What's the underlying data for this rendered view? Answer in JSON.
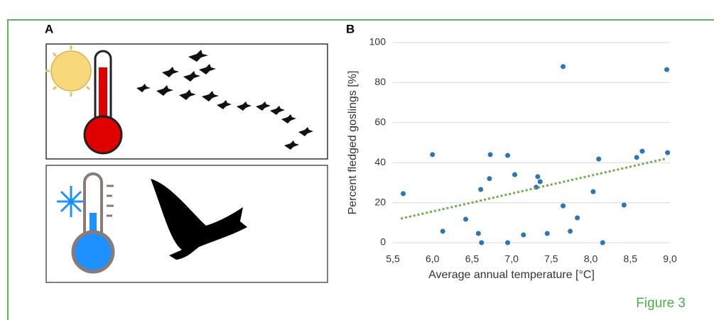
{
  "panel_labels": [
    "A",
    "B"
  ],
  "figure_label": "Figure 3",
  "chart_data": {
    "type": "scatter",
    "x_label": "Average annual temperature [°C]",
    "y_label": "Percent fledged goslings [%]",
    "color": "#2e75b6",
    "x": [
      5.63,
      6.0,
      6.13,
      6.42,
      6.58,
      6.61,
      6.62,
      6.72,
      6.73,
      6.95,
      6.95,
      7.04,
      7.15,
      7.31,
      7.33,
      7.36,
      7.45,
      7.65,
      7.65,
      7.74,
      7.83,
      8.03,
      8.1,
      8.15,
      8.42,
      8.58,
      8.65,
      8.96,
      8.97
    ],
    "values": [
      24.5,
      44,
      5.7,
      11.7,
      4.6,
      26.6,
      0,
      32,
      44,
      43.6,
      0,
      34,
      3.9,
      27.7,
      33,
      30.5,
      4.6,
      88,
      18.4,
      5.7,
      12.4,
      25.5,
      41.8,
      0,
      18.8,
      42.6,
      45.7,
      86.5,
      45
    ],
    "trendline": {
      "color": "#70ad47",
      "x": [
        5.6,
        8.95
      ],
      "values": [
        12,
        42
      ]
    },
    "xlim": [
      5.5,
      9.0
    ],
    "ylim": [
      0,
      100
    ],
    "xticks": [
      {
        "value": 5.5,
        "label": "5,5"
      },
      {
        "value": 6.0,
        "label": "6,0"
      },
      {
        "value": 6.5,
        "label": "6,5"
      },
      {
        "value": 7.0,
        "label": "7,0"
      },
      {
        "value": 7.5,
        "label": "7,5"
      },
      {
        "value": 8.0,
        "label": "8,0"
      },
      {
        "value": 8.5,
        "label": "8,5"
      },
      {
        "value": 9.0,
        "label": "9,0"
      }
    ],
    "yticks": [
      0,
      20,
      40,
      60,
      80,
      100
    ],
    "grid": true
  }
}
